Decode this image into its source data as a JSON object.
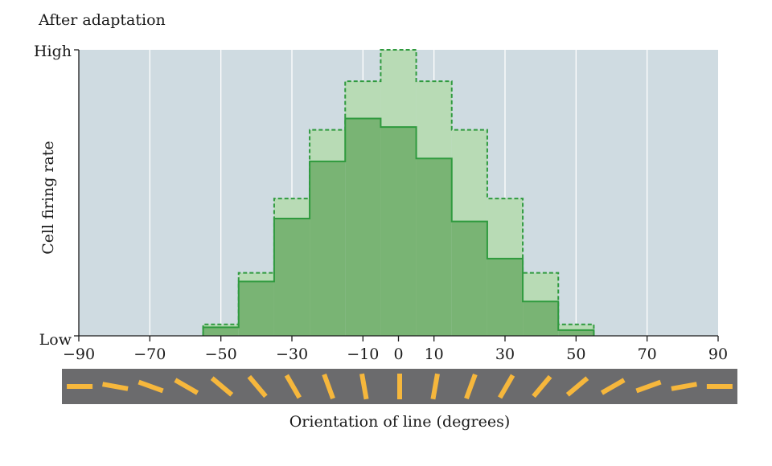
{
  "chart_data": {
    "type": "bar",
    "title": "After adaptation",
    "xlabel": "Orientation of line (degrees)",
    "ylabel": "Cell firing rate",
    "y_tick_labels": [
      "High",
      "Low"
    ],
    "xlim": [
      -90,
      90
    ],
    "ylim": [
      0,
      1
    ],
    "x_ticks": [
      -90,
      -70,
      -50,
      -30,
      -10,
      0,
      10,
      30,
      50,
      70,
      90
    ],
    "x_tick_labels": [
      "−90",
      "−70",
      "−50",
      "−30",
      "−10",
      "0",
      "10",
      "30",
      "50",
      "70",
      "90"
    ],
    "vertical_gridlines": [
      -70,
      -50,
      -30,
      -10,
      10,
      30,
      50,
      70
    ],
    "bin_edges": [
      -55,
      -45,
      -35,
      -25,
      -15,
      -5,
      5,
      15,
      25,
      35,
      45,
      55
    ],
    "series": [
      {
        "style": "dashed-outline-light-fill",
        "color": "#2f9a3e",
        "fill": "#b8dbb5",
        "values": [
          0.04,
          0.22,
          0.48,
          0.72,
          0.89,
          1.0,
          0.89,
          0.72,
          0.48,
          0.22,
          0.04
        ]
      },
      {
        "style": "solid-outline-dark-fill",
        "color": "#2f9a3e",
        "fill": "#79b474",
        "values": [
          0.03,
          0.19,
          0.41,
          0.61,
          0.76,
          0.73,
          0.62,
          0.4,
          0.27,
          0.12,
          0.02
        ]
      }
    ],
    "stimulus_strip": {
      "background": "#6b6b6d",
      "line_color": "#f6b73c",
      "orientations": [
        -90,
        -80,
        -70,
        -60,
        -50,
        -40,
        -30,
        -20,
        -10,
        0,
        10,
        20,
        30,
        40,
        50,
        60,
        70,
        80,
        90
      ]
    },
    "plot_background": "#cfdbe1",
    "grid": true,
    "legend": "none"
  }
}
